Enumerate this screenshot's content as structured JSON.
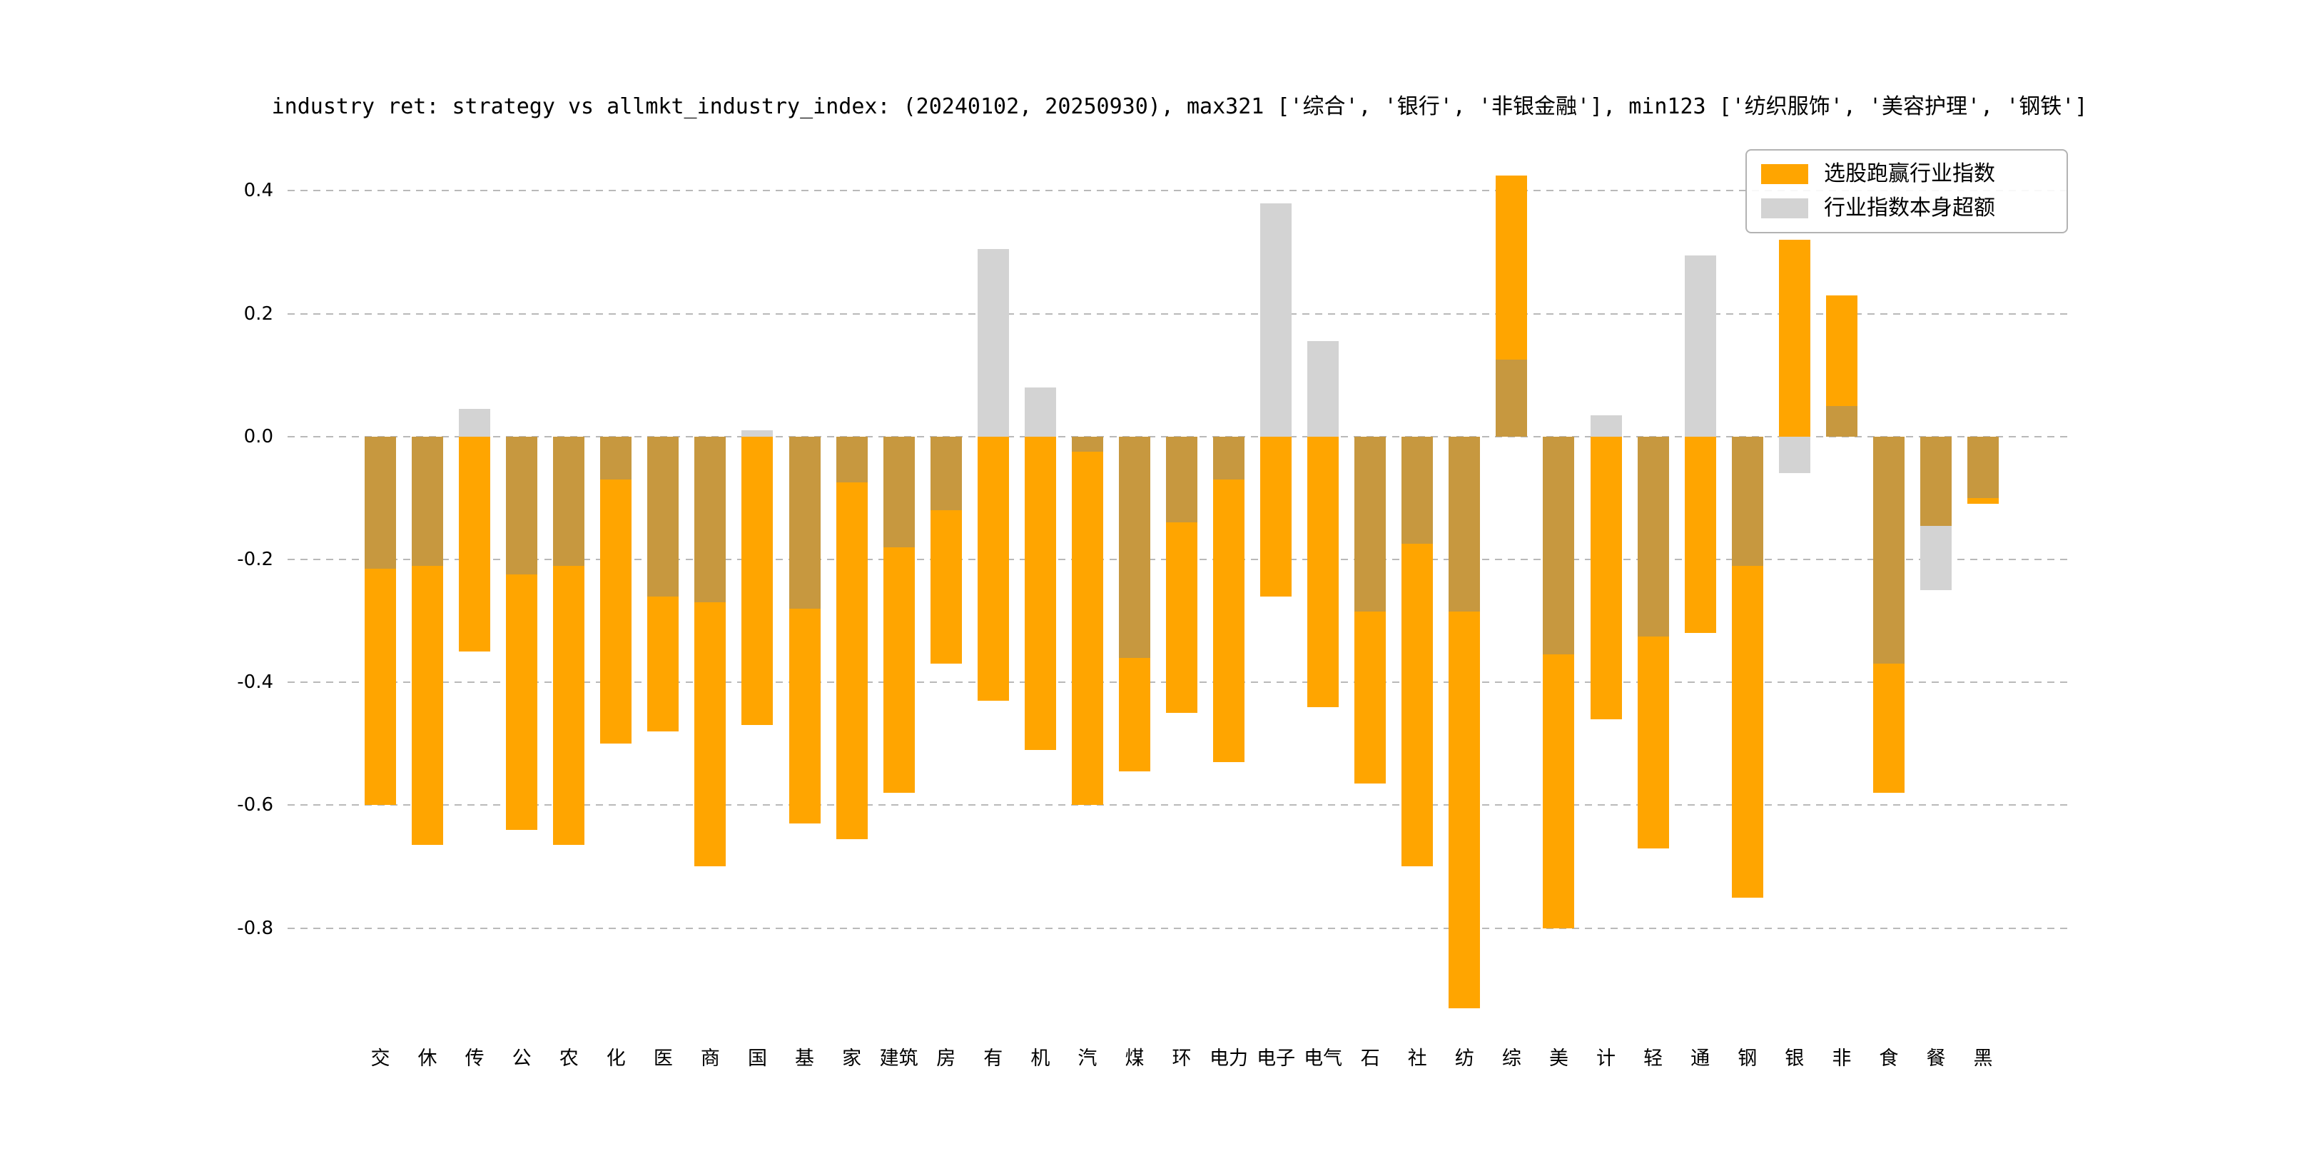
{
  "title": "industry ret: strategy vs allmkt_industry_index: (20240102, 20250930), max321 ['综合', '银行', '非银金融'], min123 ['纺织服饰', '美容护理', '钢铁']",
  "legend": [
    {
      "label": "选股跑赢行业指数",
      "color": "#FFA500"
    },
    {
      "label": "行业指数本身超额",
      "color": "#D3D3D3"
    }
  ],
  "colors": {
    "strategy_bar": "#FFA500",
    "index_bar": "#D3D3D3",
    "overlap": "#C7983F",
    "gridline": "#b9b9b9"
  },
  "chart_data": {
    "type": "bar",
    "title": "industry ret: strategy vs allmkt_industry_index: (20240102, 20250930), max321 ['综合', '银行', '非银金融'], min123 ['纺织服饰', '美容护理', '钢铁']",
    "xlabel": "",
    "ylabel": "",
    "categories": [
      "交",
      "休",
      "传",
      "公",
      "农",
      "化",
      "医",
      "商",
      "国",
      "基",
      "家",
      "建筑",
      "房",
      "有",
      "机",
      "汽",
      "煤",
      "环",
      "电力",
      "电子",
      "电气",
      "石",
      "社",
      "纺",
      "综",
      "美",
      "计",
      "轻",
      "通",
      "钢",
      "银",
      "非",
      "食",
      "餐",
      "黑"
    ],
    "series": [
      {
        "name": "选股跑赢行业指数",
        "color": "#FFA500",
        "values": [
          -0.6,
          -0.665,
          -0.35,
          -0.64,
          -0.665,
          -0.5,
          -0.48,
          -0.7,
          -0.47,
          -0.63,
          -0.655,
          -0.58,
          -0.37,
          -0.43,
          -0.51,
          -0.6,
          -0.545,
          -0.45,
          -0.53,
          -0.26,
          -0.44,
          -0.565,
          -0.7,
          -0.93,
          0.425,
          -0.8,
          -0.46,
          -0.67,
          -0.32,
          -0.75,
          0.32,
          0.23,
          -0.58,
          -0.145,
          -0.11
        ]
      },
      {
        "name": "行业指数本身超额",
        "color": "#D3D3D3",
        "values": [
          -0.215,
          -0.21,
          0.045,
          -0.225,
          -0.21,
          -0.07,
          -0.26,
          -0.27,
          0.01,
          -0.28,
          -0.075,
          -0.18,
          -0.12,
          0.305,
          0.08,
          -0.025,
          -0.36,
          -0.14,
          -0.07,
          0.38,
          0.155,
          -0.285,
          -0.175,
          -0.285,
          0.125,
          -0.355,
          0.035,
          -0.325,
          0.295,
          -0.21,
          -0.06,
          0.05,
          -0.37,
          -0.25,
          -0.1
        ]
      }
    ],
    "ylim": [
      -0.97,
      0.47
    ],
    "yticks": [
      0.4,
      0.2,
      0.0,
      -0.2,
      -0.4,
      -0.6,
      -0.8
    ],
    "ytick_labels": [
      "0.4",
      "0.2",
      "0.0",
      "-0.2",
      "-0.4",
      "-0.6",
      "-0.8"
    ],
    "grid": "horizontal dashed",
    "legend_position": "upper right",
    "bars_overlaid": true
  }
}
